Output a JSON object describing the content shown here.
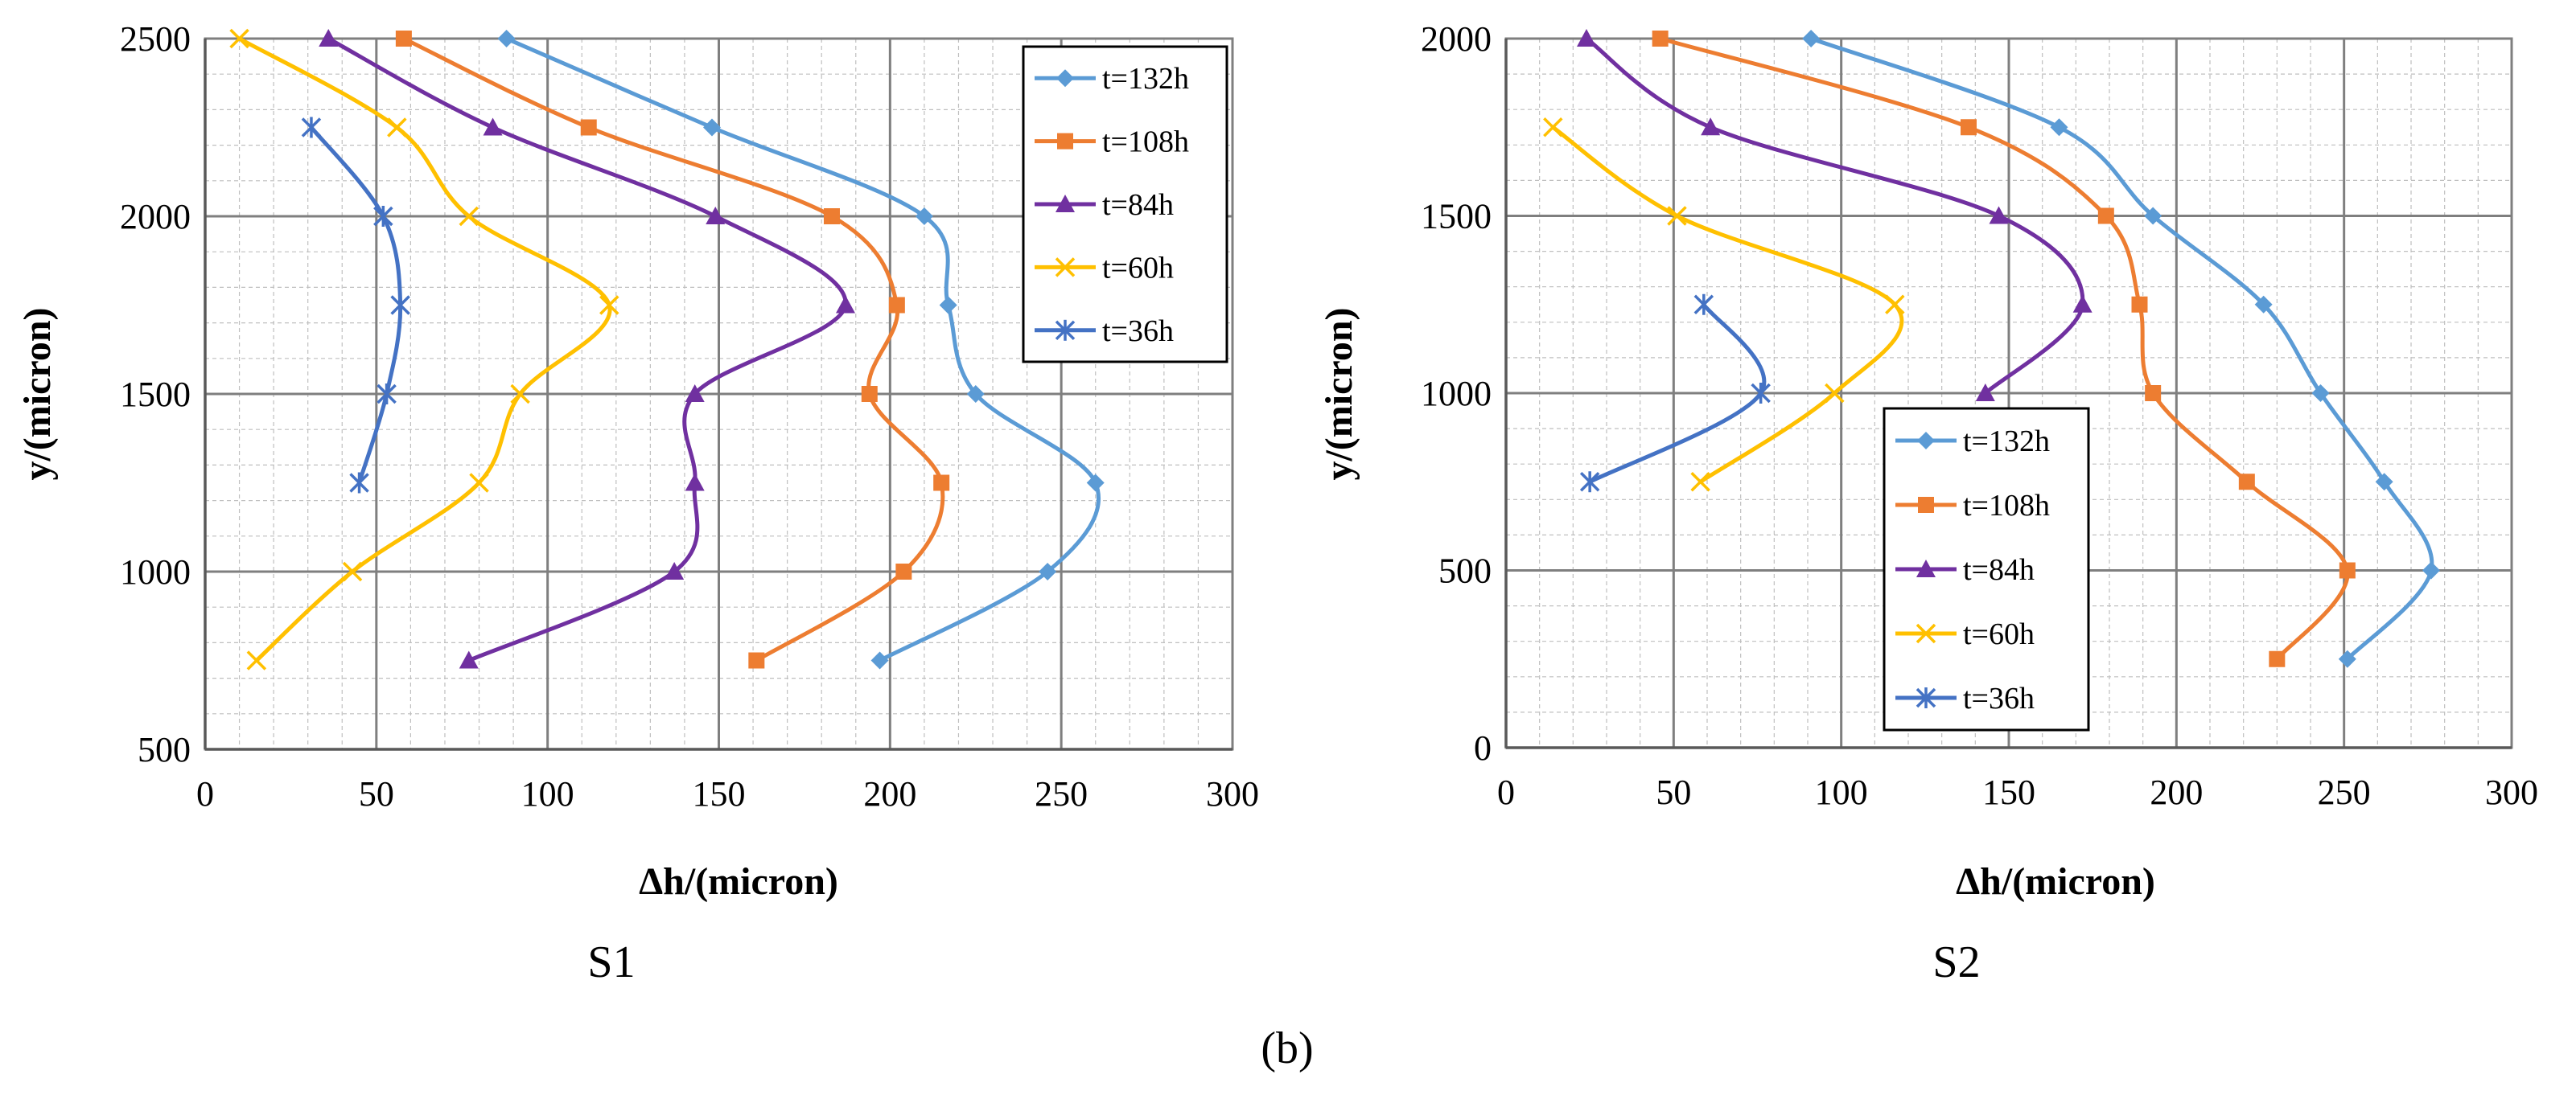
{
  "figure_label": "(b)",
  "chart_data": [
    {
      "type": "line",
      "caption": "S1",
      "xlabel": "Δh/(micron)",
      "ylabel": "y/(micron)",
      "xlim": [
        0,
        300
      ],
      "ylim": [
        500,
        2500
      ],
      "xticks": [
        0,
        50,
        100,
        150,
        200,
        250,
        300
      ],
      "yticks": [
        500,
        1000,
        1500,
        2000,
        2500
      ],
      "grid": true,
      "legend_position": "top-right",
      "series": [
        {
          "name": "t=132h",
          "color": "#5B9BD5",
          "marker": "diamond",
          "points": [
            [
              88,
              2500
            ],
            [
              148,
              2250
            ],
            [
              210,
              2000
            ],
            [
              217,
              1750
            ],
            [
              225,
              1500
            ],
            [
              260,
              1250
            ],
            [
              246,
              1000
            ],
            [
              197,
              750
            ]
          ]
        },
        {
          "name": "t=108h",
          "color": "#ED7D31",
          "marker": "square",
          "points": [
            [
              58,
              2500
            ],
            [
              112,
              2250
            ],
            [
              183,
              2000
            ],
            [
              202,
              1750
            ],
            [
              194,
              1500
            ],
            [
              215,
              1250
            ],
            [
              204,
              1000
            ],
            [
              161,
              750
            ]
          ]
        },
        {
          "name": "t=84h",
          "color": "#7030A0",
          "marker": "triangle",
          "points": [
            [
              36,
              2500
            ],
            [
              84,
              2250
            ],
            [
              149,
              2000
            ],
            [
              187,
              1750
            ],
            [
              143,
              1500
            ],
            [
              143,
              1250
            ],
            [
              137,
              1000
            ],
            [
              77,
              750
            ]
          ]
        },
        {
          "name": "t=60h",
          "color": "#FFC000",
          "marker": "x",
          "points": [
            [
              10,
              2500
            ],
            [
              56,
              2250
            ],
            [
              77,
              2000
            ],
            [
              118,
              1750
            ],
            [
              92,
              1500
            ],
            [
              80,
              1250
            ],
            [
              43,
              1000
            ],
            [
              15,
              750
            ]
          ]
        },
        {
          "name": "t=36h",
          "color": "#4472C4",
          "marker": "asterisk",
          "points": [
            [
              31,
              2250
            ],
            [
              52,
              2000
            ],
            [
              57,
              1750
            ],
            [
              53,
              1500
            ],
            [
              45,
              1250
            ]
          ]
        }
      ]
    },
    {
      "type": "line",
      "caption": "S2",
      "xlabel": "Δh/(micron)",
      "ylabel": "y/(micron)",
      "xlim": [
        0,
        300
      ],
      "ylim": [
        0,
        2000
      ],
      "xticks": [
        0,
        50,
        100,
        150,
        200,
        250,
        300
      ],
      "yticks": [
        0,
        500,
        1000,
        1500,
        2000
      ],
      "grid": true,
      "legend_position": "bottom-center",
      "series": [
        {
          "name": "t=132h",
          "color": "#5B9BD5",
          "marker": "diamond",
          "points": [
            [
              91,
              2000
            ],
            [
              165,
              1750
            ],
            [
              193,
              1500
            ],
            [
              226,
              1250
            ],
            [
              243,
              1000
            ],
            [
              262,
              750
            ],
            [
              276,
              500
            ],
            [
              251,
              250
            ]
          ]
        },
        {
          "name": "t=108h",
          "color": "#ED7D31",
          "marker": "square",
          "points": [
            [
              46,
              2000
            ],
            [
              138,
              1750
            ],
            [
              179,
              1500
            ],
            [
              189,
              1250
            ],
            [
              193,
              1000
            ],
            [
              221,
              750
            ],
            [
              251,
              500
            ],
            [
              230,
              250
            ]
          ]
        },
        {
          "name": "t=84h",
          "color": "#7030A0",
          "marker": "triangle",
          "points": [
            [
              24,
              2000
            ],
            [
              61,
              1750
            ],
            [
              147,
              1500
            ],
            [
              172,
              1250
            ],
            [
              143,
              1000
            ]
          ]
        },
        {
          "name": "t=60h",
          "color": "#FFC000",
          "marker": "x",
          "points": [
            [
              14,
              1750
            ],
            [
              51,
              1500
            ],
            [
              116,
              1250
            ],
            [
              98,
              1000
            ],
            [
              58,
              750
            ]
          ]
        },
        {
          "name": "t=36h",
          "color": "#4472C4",
          "marker": "asterisk",
          "points": [
            [
              59,
              1250
            ],
            [
              76,
              1000
            ],
            [
              25,
              750
            ]
          ]
        }
      ]
    }
  ]
}
